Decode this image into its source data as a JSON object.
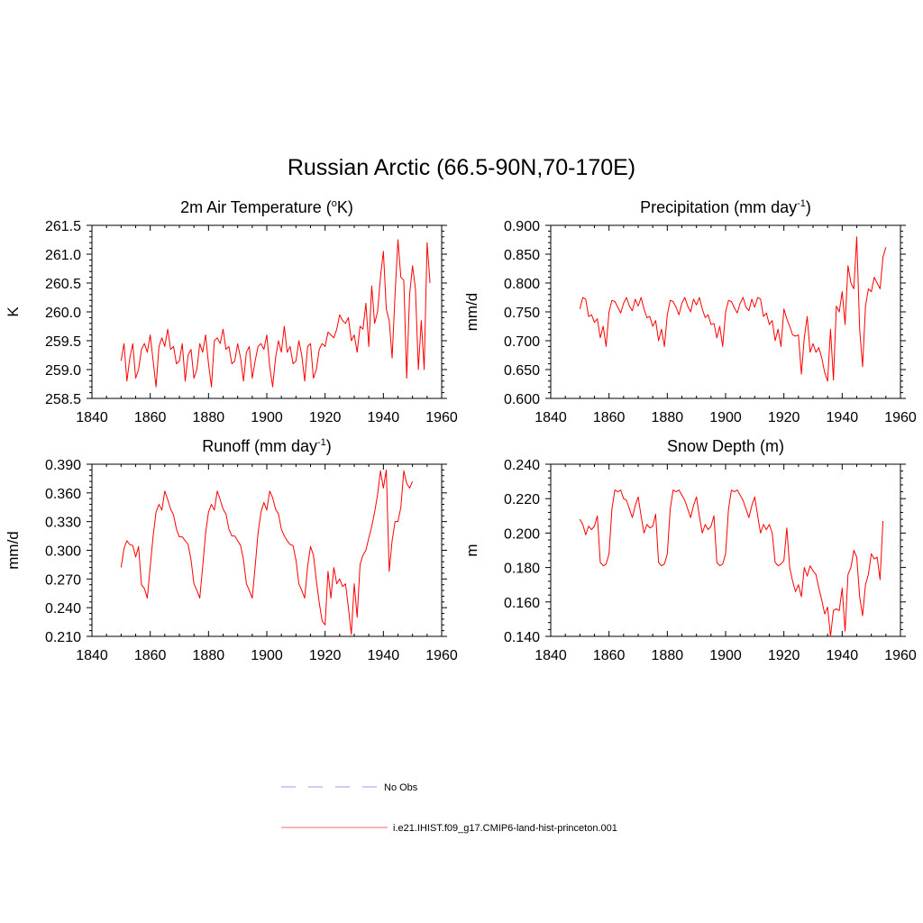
{
  "figure": {
    "title": "Russian Arctic (66.5-90N,70-170E)",
    "series_color": "#ff0000",
    "obs_color": "#9999ff"
  },
  "legend": {
    "items": [
      {
        "label": "No Obs",
        "style": "dashed",
        "color": "#9999ff"
      },
      {
        "label": "i.e21.IHIST.f09_g17.CMIP6-land-hist-princeton.001",
        "style": "solid",
        "color": "#ff6666"
      }
    ]
  },
  "chart_data": [
    {
      "type": "line",
      "title": "2m Air Temperature (",
      "title_sup": "o",
      "title_suffix": "K)",
      "ylabel": "K",
      "xlim": [
        1840,
        1960
      ],
      "xticks": [
        "1840",
        "1860",
        "1880",
        "1900",
        "1920",
        "1940",
        "1960"
      ],
      "ylim": [
        258.5,
        261.5
      ],
      "yticks": [
        "258.5",
        "259.0",
        "259.5",
        "260.0",
        "260.5",
        "261.0",
        "261.5"
      ],
      "x_start": 1850,
      "values": [
        259.15,
        259.45,
        258.8,
        259.2,
        259.45,
        258.85,
        259.0,
        259.35,
        259.45,
        259.3,
        259.6,
        259.15,
        258.7,
        259.4,
        259.55,
        259.4,
        259.7,
        259.35,
        259.4,
        259.1,
        259.15,
        259.45,
        258.8,
        259.25,
        259.35,
        258.85,
        259.0,
        259.45,
        259.3,
        259.6,
        259.1,
        258.7,
        259.5,
        259.55,
        259.45,
        259.7,
        259.35,
        259.4,
        259.1,
        259.15,
        259.45,
        259.2,
        258.8,
        259.3,
        259.4,
        258.85,
        259.15,
        259.4,
        259.45,
        259.35,
        259.6,
        259.05,
        258.7,
        259.2,
        259.5,
        259.3,
        259.75,
        259.3,
        259.4,
        259.1,
        259.15,
        259.5,
        259.25,
        258.8,
        259.4,
        259.45,
        258.85,
        259.0,
        259.35,
        259.45,
        259.4,
        259.65,
        259.6,
        259.55,
        259.7,
        259.95,
        259.85,
        259.8,
        259.9,
        259.5,
        259.6,
        259.3,
        259.75,
        259.7,
        260.15,
        259.4,
        260.45,
        259.8,
        260.0,
        260.6,
        261.05,
        260.05,
        259.85,
        259.2,
        260.3,
        261.25,
        260.6,
        260.55,
        258.85,
        260.3,
        260.8,
        260.4,
        259.0,
        259.85,
        259.0,
        261.2,
        260.5
      ]
    },
    {
      "type": "line",
      "title": "Precipitation (mm day",
      "title_sup": "-1",
      "title_suffix": ")",
      "ylabel": "mm/d",
      "xlim": [
        1840,
        1960
      ],
      "xticks": [
        "1840",
        "1860",
        "1880",
        "1900",
        "1920",
        "1940",
        "1960"
      ],
      "ylim": [
        0.6,
        0.9
      ],
      "yticks": [
        "0.600",
        "0.650",
        "0.700",
        "0.750",
        "0.800",
        "0.850",
        "0.900"
      ],
      "x_start": 1850,
      "values": [
        0.755,
        0.775,
        0.772,
        0.742,
        0.745,
        0.732,
        0.738,
        0.705,
        0.725,
        0.69,
        0.75,
        0.77,
        0.768,
        0.758,
        0.748,
        0.765,
        0.775,
        0.76,
        0.752,
        0.772,
        0.76,
        0.775,
        0.755,
        0.74,
        0.742,
        0.725,
        0.735,
        0.7,
        0.72,
        0.69,
        0.745,
        0.77,
        0.768,
        0.758,
        0.745,
        0.765,
        0.775,
        0.76,
        0.75,
        0.772,
        0.762,
        0.775,
        0.755,
        0.74,
        0.745,
        0.728,
        0.73,
        0.705,
        0.725,
        0.69,
        0.75,
        0.77,
        0.768,
        0.757,
        0.748,
        0.765,
        0.775,
        0.758,
        0.752,
        0.772,
        0.758,
        0.775,
        0.772,
        0.742,
        0.748,
        0.728,
        0.735,
        0.7,
        0.72,
        0.69,
        0.755,
        0.738,
        0.725,
        0.71,
        0.708,
        0.71,
        0.642,
        0.705,
        0.742,
        0.68,
        0.695,
        0.68,
        0.688,
        0.67,
        0.645,
        0.63,
        0.72,
        0.632,
        0.76,
        0.75,
        0.785,
        0.728,
        0.83,
        0.8,
        0.79,
        0.88,
        0.72,
        0.655,
        0.76,
        0.79,
        0.785,
        0.81,
        0.8,
        0.79,
        0.845,
        0.862
      ]
    },
    {
      "type": "line",
      "title": "Runoff (mm day",
      "title_sup": "-1",
      "title_suffix": ")",
      "ylabel": "mm/d",
      "xlim": [
        1840,
        1960
      ],
      "xticks": [
        "1840",
        "1860",
        "1880",
        "1900",
        "1920",
        "1940",
        "1960"
      ],
      "ylim": [
        0.21,
        0.39
      ],
      "yticks": [
        "0.210",
        "0.240",
        "0.270",
        "0.300",
        "0.330",
        "0.360",
        "0.390"
      ],
      "x_start": 1850,
      "values": [
        0.282,
        0.302,
        0.31,
        0.306,
        0.305,
        0.293,
        0.304,
        0.264,
        0.26,
        0.25,
        0.283,
        0.315,
        0.34,
        0.348,
        0.342,
        0.362,
        0.353,
        0.343,
        0.337,
        0.322,
        0.314,
        0.314,
        0.31,
        0.306,
        0.29,
        0.265,
        0.258,
        0.25,
        0.283,
        0.318,
        0.34,
        0.348,
        0.342,
        0.362,
        0.353,
        0.343,
        0.338,
        0.322,
        0.315,
        0.315,
        0.31,
        0.305,
        0.29,
        0.265,
        0.258,
        0.25,
        0.283,
        0.318,
        0.34,
        0.35,
        0.342,
        0.362,
        0.355,
        0.343,
        0.338,
        0.322,
        0.315,
        0.31,
        0.306,
        0.305,
        0.29,
        0.265,
        0.258,
        0.25,
        0.283,
        0.304,
        0.295,
        0.268,
        0.245,
        0.226,
        0.222,
        0.278,
        0.25,
        0.282,
        0.265,
        0.27,
        0.262,
        0.265,
        0.24,
        0.212,
        0.265,
        0.23,
        0.285,
        0.295,
        0.3,
        0.313,
        0.325,
        0.34,
        0.358,
        0.383,
        0.365,
        0.384,
        0.278,
        0.31,
        0.33,
        0.33,
        0.345,
        0.383,
        0.37,
        0.365,
        0.372
      ]
    },
    {
      "type": "line",
      "title": "Snow Depth (m)",
      "title_sup": "",
      "title_suffix": "",
      "ylabel": "m",
      "xlim": [
        1840,
        1960
      ],
      "xticks": [
        "1840",
        "1860",
        "1880",
        "1900",
        "1920",
        "1940",
        "1960"
      ],
      "ylim": [
        0.14,
        0.24
      ],
      "yticks": [
        "0.140",
        "0.160",
        "0.180",
        "0.200",
        "0.220",
        "0.240"
      ],
      "x_start": 1850,
      "values": [
        0.208,
        0.205,
        0.199,
        0.204,
        0.202,
        0.204,
        0.21,
        0.183,
        0.181,
        0.182,
        0.188,
        0.214,
        0.225,
        0.224,
        0.225,
        0.22,
        0.219,
        0.214,
        0.209,
        0.216,
        0.221,
        0.21,
        0.2,
        0.205,
        0.203,
        0.204,
        0.211,
        0.183,
        0.181,
        0.182,
        0.188,
        0.214,
        0.225,
        0.224,
        0.225,
        0.222,
        0.219,
        0.214,
        0.209,
        0.216,
        0.221,
        0.21,
        0.2,
        0.205,
        0.202,
        0.204,
        0.21,
        0.183,
        0.181,
        0.182,
        0.188,
        0.214,
        0.225,
        0.224,
        0.225,
        0.222,
        0.219,
        0.214,
        0.209,
        0.216,
        0.221,
        0.21,
        0.2,
        0.205,
        0.202,
        0.205,
        0.2,
        0.183,
        0.181,
        0.182,
        0.184,
        0.203,
        0.18,
        0.172,
        0.166,
        0.17,
        0.163,
        0.18,
        0.175,
        0.181,
        0.178,
        0.176,
        0.168,
        0.161,
        0.153,
        0.157,
        0.14,
        0.155,
        0.156,
        0.155,
        0.168,
        0.143,
        0.176,
        0.18,
        0.19,
        0.186,
        0.163,
        0.152,
        0.17,
        0.176,
        0.188,
        0.185,
        0.186,
        0.173,
        0.207
      ]
    }
  ]
}
